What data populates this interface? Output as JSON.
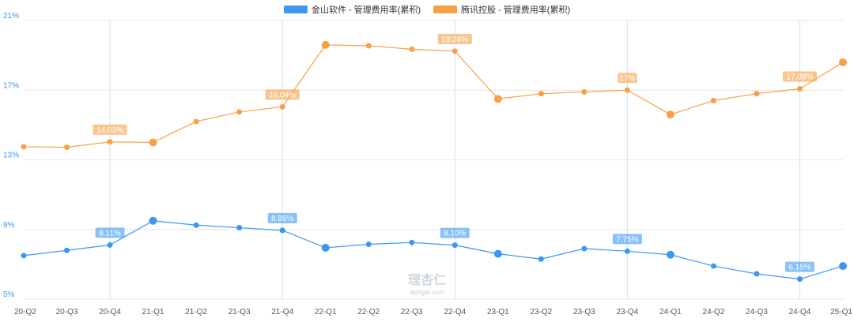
{
  "colors": {
    "series1": "#3b97f3",
    "series2": "#f7a045",
    "grid": "#e6e6e6",
    "vline": "#cfe3f5",
    "axis_text": "#3b97f3",
    "x_text": "#555555"
  },
  "watermark": {
    "logo_text": "理杏仁",
    "url": "lixinger.com"
  },
  "chart_data": {
    "type": "line",
    "categories": [
      "20-Q2",
      "20-Q3",
      "20-Q4",
      "21-Q1",
      "21-Q2",
      "21-Q3",
      "21-Q4",
      "22-Q1",
      "22-Q2",
      "22-Q3",
      "22-Q4",
      "23-Q1",
      "23-Q2",
      "23-Q3",
      "23-Q4",
      "24-Q1",
      "24-Q2",
      "24-Q3",
      "24-Q4",
      "25-Q1"
    ],
    "ylim": [
      5,
      21
    ],
    "yticks": [
      5,
      9,
      13,
      17,
      21
    ],
    "ytick_labels": [
      "5%",
      "9%",
      "13%",
      "17%",
      "21%"
    ],
    "grid": true,
    "legend_position": "top-center",
    "series": [
      {
        "name": "金山软件 - 管理费用率(累积)",
        "values": [
          7.5,
          7.8,
          8.11,
          9.5,
          9.25,
          9.1,
          8.95,
          7.95,
          8.15,
          8.25,
          8.1,
          7.6,
          7.3,
          7.9,
          7.75,
          7.55,
          6.9,
          6.45,
          6.15,
          6.9
        ],
        "big_markers": [
          3,
          7,
          11,
          15,
          19
        ],
        "labels": [
          {
            "index": 2,
            "text": "8.11%"
          },
          {
            "index": 6,
            "text": "8.95%"
          },
          {
            "index": 10,
            "text": "8.10%"
          },
          {
            "index": 14,
            "text": "7.75%"
          },
          {
            "index": 18,
            "text": "6.15%"
          }
        ]
      },
      {
        "name": "腾讯控股 - 管理费用率(累积)",
        "values": [
          13.75,
          13.72,
          14.03,
          14.0,
          15.2,
          15.75,
          16.04,
          19.6,
          19.55,
          19.35,
          19.24,
          16.5,
          16.8,
          16.9,
          17.0,
          15.6,
          16.4,
          16.8,
          17.08,
          18.6
        ],
        "big_markers": [
          3,
          7,
          11,
          15,
          19
        ],
        "labels": [
          {
            "index": 2,
            "text": "14.03%"
          },
          {
            "index": 6,
            "text": "16.04%"
          },
          {
            "index": 10,
            "text": "19.24%"
          },
          {
            "index": 14,
            "text": "17%"
          },
          {
            "index": 18,
            "text": "17.08%"
          }
        ]
      }
    ]
  }
}
